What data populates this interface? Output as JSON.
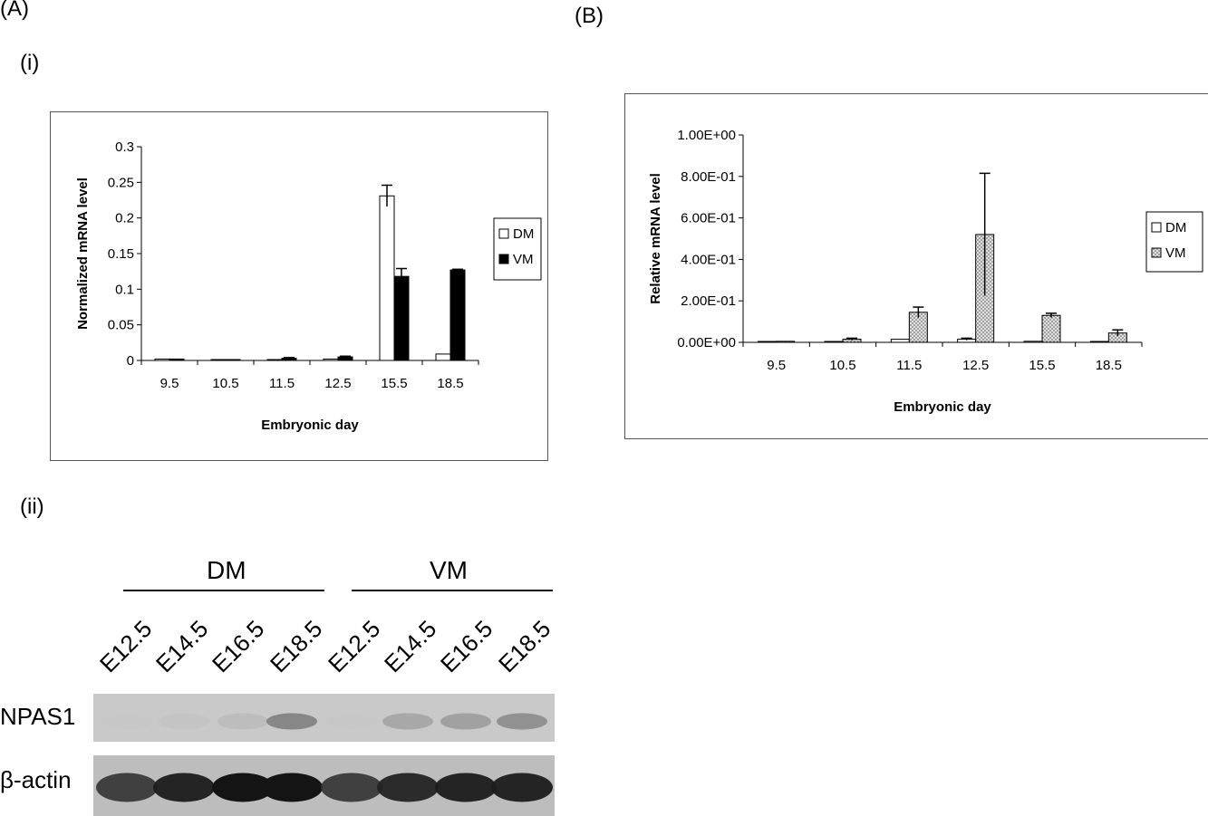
{
  "panel_labels": {
    "A": "(A)",
    "B": "(B)",
    "i": "(i)",
    "ii": "(ii)"
  },
  "colors": {
    "dm_fill": "#ffffff",
    "vm_fill_A": "#000000",
    "vm_fill_B": "#d0d0d0",
    "stroke": "#000000"
  },
  "chart_data": [
    {
      "id": "A-i",
      "type": "bar",
      "categories": [
        "9.5",
        "10.5",
        "11.5",
        "12.5",
        "15.5",
        "18.5"
      ],
      "series": [
        {
          "name": "DM",
          "values": [
            0.002,
            0.001,
            0.001,
            0.002,
            0.231,
            0.009
          ],
          "errors": [
            0,
            0,
            0,
            0,
            0.015,
            0
          ]
        },
        {
          "name": "VM",
          "values": [
            0.002,
            0.001,
            0.003,
            0.005,
            0.118,
            0.127
          ],
          "errors": [
            0,
            0,
            0.001,
            0.001,
            0.011,
            0.001
          ]
        }
      ],
      "xlabel": "Embryonic day",
      "ylabel": "Normalized mRNA level",
      "ylim": [
        0,
        0.3
      ],
      "yticks": [
        0,
        0.05,
        0.1,
        0.15,
        0.2,
        0.25,
        0.3
      ],
      "ytick_labels": [
        "0",
        "0.05",
        "0.1",
        "0.15",
        "0.2",
        "0.25",
        "0.3"
      ],
      "legend": "right"
    },
    {
      "id": "B",
      "type": "bar",
      "categories": [
        "9.5",
        "10.5",
        "11.5",
        "12.5",
        "15.5",
        "18.5"
      ],
      "series": [
        {
          "name": "DM",
          "values": [
            0.001,
            0.002,
            0.015,
            0.015,
            0.005,
            0.003
          ],
          "errors": [
            0,
            0,
            0,
            0.005,
            0,
            0
          ]
        },
        {
          "name": "VM",
          "values": [
            0.005,
            0.015,
            0.145,
            0.52,
            0.13,
            0.045
          ],
          "errors": [
            0,
            0.005,
            0.025,
            0.295,
            0.01,
            0.015
          ]
        }
      ],
      "xlabel": "Embryonic day",
      "ylabel": "Relative mRNA level",
      "ylim": [
        0,
        1
      ],
      "yticks": [
        0,
        0.2,
        0.4,
        0.6,
        0.8,
        1
      ],
      "ytick_labels": [
        "0.00E+00",
        "2.00E-01",
        "4.00E-01",
        "6.00E-01",
        "8.00E-01",
        "1.00E+00"
      ],
      "legend": "right"
    }
  ],
  "blot": {
    "groups": [
      "DM",
      "VM"
    ],
    "lanes": [
      "E12.5",
      "E14.5",
      "E16.5",
      "E18.5",
      "E12.5",
      "E14.5",
      "E16.5",
      "E18.5"
    ],
    "bands": [
      {
        "name": "NPAS1",
        "intensities": [
          0.02,
          0.08,
          0.18,
          0.55,
          0.03,
          0.35,
          0.4,
          0.5
        ]
      },
      {
        "name": "β-actin",
        "intensities": [
          0.85,
          0.95,
          1.0,
          1.0,
          0.85,
          0.92,
          0.95,
          0.95
        ]
      }
    ]
  }
}
